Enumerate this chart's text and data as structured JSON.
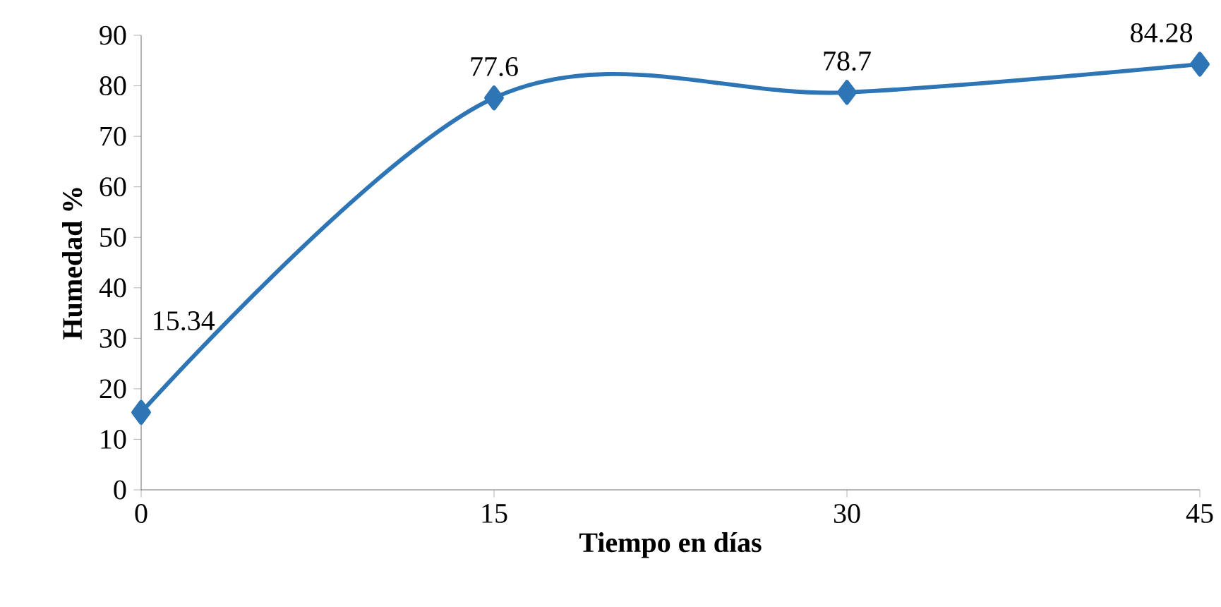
{
  "chart_data": {
    "type": "line",
    "xlabel": "Tiempo en días",
    "ylabel": "Humedad %",
    "x": [
      0,
      15,
      30,
      45
    ],
    "series": [
      {
        "color": "#2e75b6",
        "values": [
          15.34,
          77.6,
          78.7,
          84.28
        ]
      }
    ],
    "xlim": [
      0,
      45
    ],
    "xticks": [
      0,
      15,
      30,
      45
    ],
    "ylim": [
      0,
      90
    ],
    "yticks": [
      0,
      10,
      20,
      30,
      40,
      50,
      60,
      70,
      80,
      90
    ],
    "marker": "diamond",
    "line_style": "solid",
    "grid": false,
    "data_labels": true
  }
}
